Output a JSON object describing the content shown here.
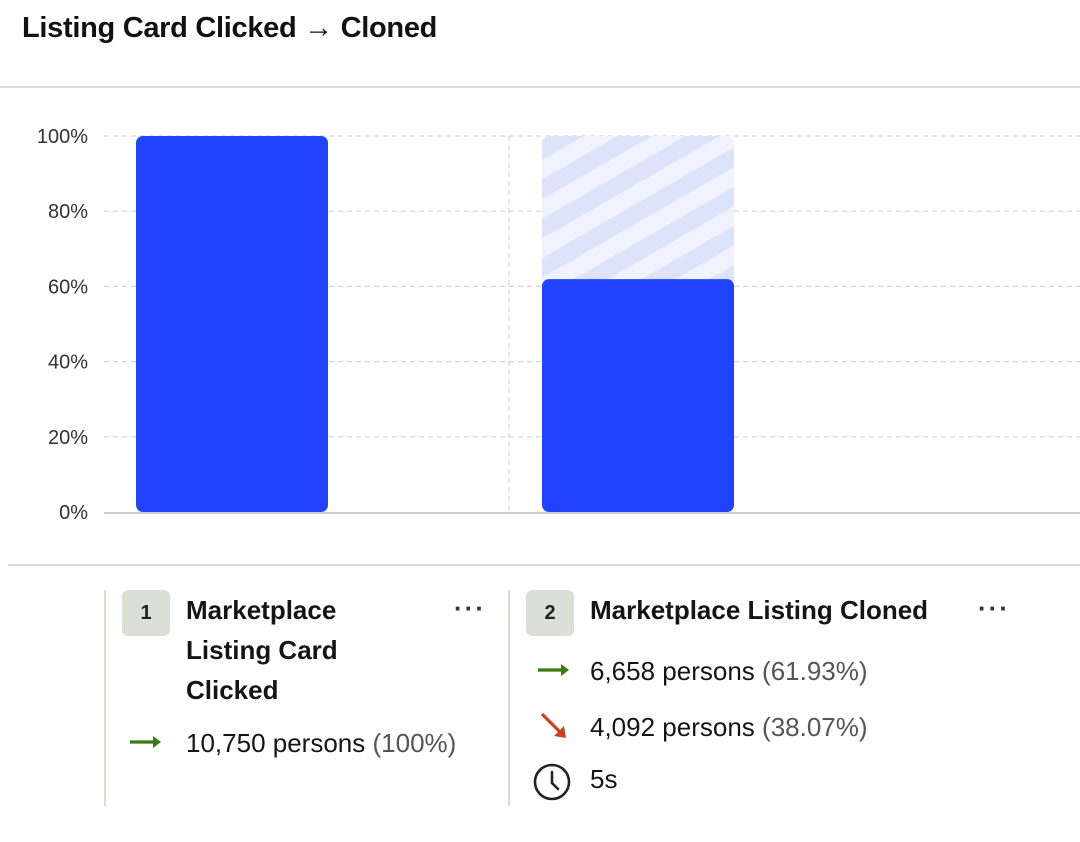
{
  "title": "Listing Card Clicked → Cloned",
  "chart_data": {
    "type": "bar",
    "categories": [
      "Marketplace Listing Card Clicked",
      "Marketplace Listing Cloned"
    ],
    "values": [
      100,
      61.93
    ],
    "ylim": [
      0,
      100
    ],
    "yticks": [
      "0%",
      "20%",
      "40%",
      "60%",
      "80%",
      "100%"
    ],
    "ytick_values": [
      0,
      20,
      40,
      60,
      80,
      100
    ],
    "grid": true,
    "dropoff_pattern": "striped",
    "colors": {
      "bar": "#1f43ff",
      "dropoff_stripe_a": "#dde3fb",
      "dropoff_stripe_b": "#f0f3fd",
      "grid": "#d4d4d4",
      "axis": "#cfcfcf",
      "tick_text": "#333333"
    }
  },
  "steps": [
    {
      "number": "1",
      "name_lines": [
        "Marketplace",
        "Listing Card",
        "Clicked"
      ],
      "menu": "···",
      "converted": {
        "text": "10,750 persons",
        "pct": "(100%)"
      }
    },
    {
      "number": "2",
      "name_lines": [
        "Marketplace Listing Cloned"
      ],
      "menu": "···",
      "converted": {
        "text": "6,658 persons",
        "pct": "(61.93%)"
      },
      "dropped": {
        "text": "4,092 persons",
        "pct": "(38.07%)"
      },
      "time": "5s"
    }
  ],
  "icons": {
    "converted": "arrow-right-icon",
    "dropped": "arrow-down-right-icon",
    "time": "clock-icon"
  },
  "colors": {
    "converted_arrow": "#3c7a12",
    "dropped_arrow": "#d03d1f"
  }
}
